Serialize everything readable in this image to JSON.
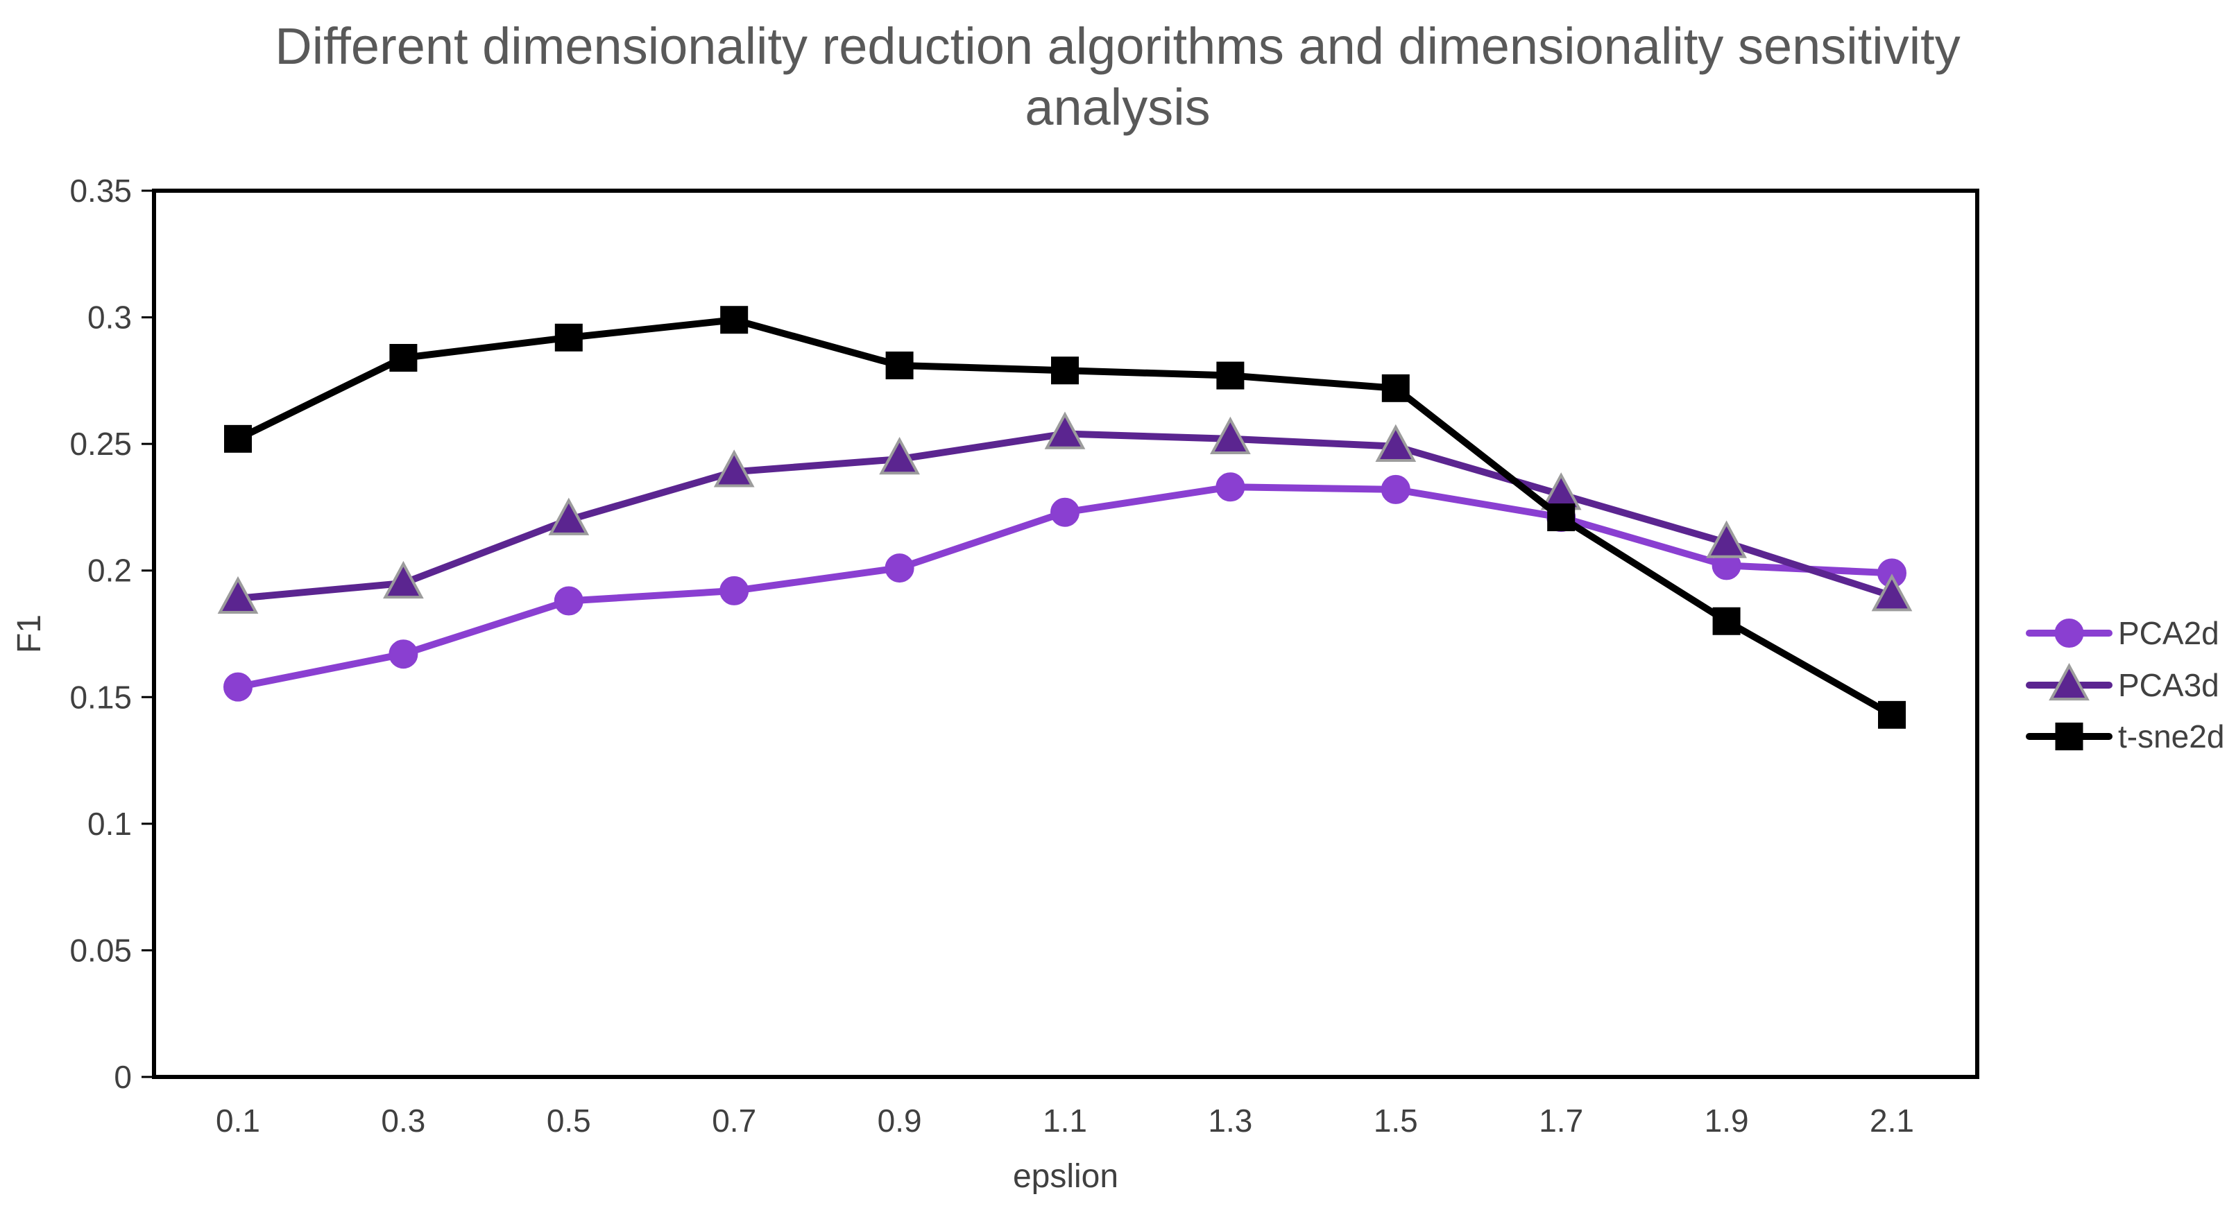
{
  "chart_data": {
    "type": "line",
    "title_lines": [
      "Different dimensionality reduction algorithms and dimensionality sensitivity",
      "analysis"
    ],
    "xlabel": "epslion",
    "ylabel": "F1",
    "categories": [
      "0.1",
      "0.3",
      "0.5",
      "0.7",
      "0.9",
      "1.1",
      "1.3",
      "1.5",
      "1.7",
      "1.9",
      "2.1"
    ],
    "ylim": [
      0,
      0.35
    ],
    "yticks": [
      "0",
      "0.05",
      "0.1",
      "0.15",
      "0.2",
      "0.25",
      "0.3",
      "0.35"
    ],
    "ytick_values": [
      0,
      0.05,
      0.1,
      0.15,
      0.2,
      0.25,
      0.3,
      0.35
    ],
    "grid": false,
    "legend_position": "right",
    "series": [
      {
        "name": "PCA2d",
        "marker": "circle",
        "color": "#8A3FD1",
        "values": [
          0.154,
          0.167,
          0.188,
          0.192,
          0.201,
          0.223,
          0.233,
          0.232,
          0.221,
          0.202,
          0.199
        ]
      },
      {
        "name": "PCA3d",
        "marker": "triangle",
        "color": "#5B2590",
        "values": [
          0.189,
          0.195,
          0.22,
          0.239,
          0.244,
          0.254,
          0.252,
          0.249,
          0.23,
          0.211,
          0.19
        ]
      },
      {
        "name": "t-sne2d",
        "marker": "square",
        "color": "#000000",
        "values": [
          0.252,
          0.284,
          0.292,
          0.299,
          0.281,
          0.279,
          0.277,
          0.272,
          0.221,
          0.18,
          0.143
        ]
      }
    ]
  }
}
